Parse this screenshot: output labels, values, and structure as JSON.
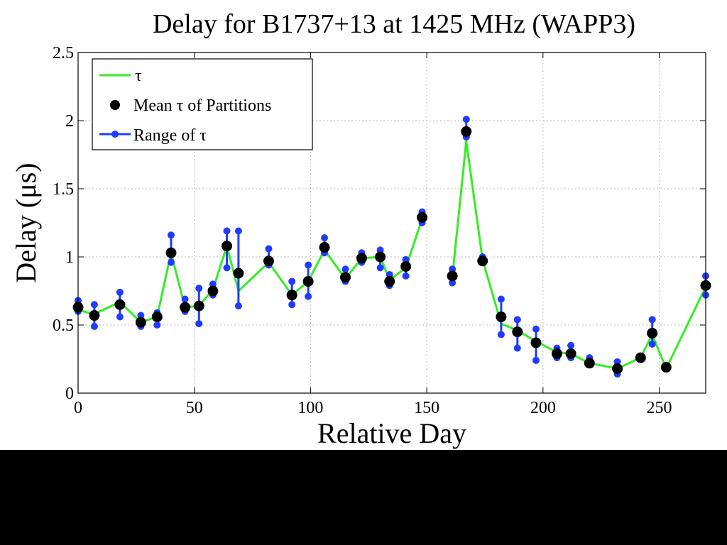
{
  "chart_data": {
    "type": "line",
    "title": "Delay for B1737+13 at 1425 MHz (WAPP3)",
    "xlabel": "Relative Day",
    "ylabel": "Delay (μs)",
    "xlim": [
      0,
      270
    ],
    "ylim": [
      0,
      2.5
    ],
    "xticks": [
      0,
      50,
      100,
      150,
      200,
      250
    ],
    "yticks": [
      0,
      0.5,
      1,
      1.5,
      2,
      2.5
    ],
    "x_tick_labels": [
      "0",
      "50",
      "100",
      "150",
      "200",
      "250"
    ],
    "y_tick_labels": [
      "0",
      "0.5",
      "1",
      "1.5",
      "2",
      "2.5"
    ],
    "grid": true,
    "legend_position": "top-left",
    "colors": {
      "tau": "#33ee22",
      "mean": "#000000",
      "range": "#1f3bff"
    },
    "legend": {
      "tau": "τ",
      "mean": "Mean τ of Partitions",
      "range": "Range of τ"
    },
    "series": [
      {
        "name": "τ",
        "segments": [
          {
            "x": [
              0,
              7,
              18,
              27,
              34,
              40,
              46,
              52,
              58,
              64,
              69,
              82,
              92,
              99,
              106,
              115,
              122,
              130,
              134,
              141,
              148
            ],
            "y": [
              0.61,
              0.58,
              0.67,
              0.52,
              0.56,
              1.03,
              0.63,
              0.64,
              0.76,
              1.08,
              0.75,
              0.96,
              0.72,
              0.82,
              1.05,
              0.84,
              0.99,
              1.0,
              0.83,
              0.92,
              1.28
            ]
          },
          {
            "x": [
              161,
              167,
              174,
              182,
              189,
              197,
              206,
              212,
              220,
              232,
              242,
              247,
              253,
              270
            ],
            "y": [
              0.85,
              1.85,
              0.98,
              0.51,
              0.46,
              0.38,
              0.3,
              0.29,
              0.22,
              0.18,
              0.26,
              0.43,
              0.18,
              0.78
            ]
          }
        ]
      },
      {
        "name": "Mean τ of Partitions",
        "x": [
          0,
          7,
          18,
          27,
          34,
          40,
          46,
          52,
          58,
          64,
          69,
          82,
          92,
          99,
          106,
          115,
          122,
          130,
          134,
          141,
          148,
          161,
          167,
          174,
          182,
          189,
          197,
          206,
          212,
          220,
          232,
          242,
          247,
          253,
          270
        ],
        "y": [
          0.63,
          0.57,
          0.65,
          0.52,
          0.56,
          1.03,
          0.63,
          0.64,
          0.75,
          1.08,
          0.88,
          0.97,
          0.72,
          0.82,
          1.07,
          0.85,
          0.99,
          1.0,
          0.82,
          0.93,
          1.29,
          0.86,
          1.92,
          0.97,
          0.56,
          0.45,
          0.37,
          0.29,
          0.29,
          0.22,
          0.18,
          0.26,
          0.44,
          0.19,
          0.79
        ]
      },
      {
        "name": "Range of τ",
        "x": [
          0,
          7,
          18,
          27,
          34,
          40,
          46,
          52,
          58,
          64,
          69,
          82,
          92,
          99,
          106,
          115,
          122,
          130,
          134,
          141,
          148,
          161,
          167,
          174,
          182,
          189,
          197,
          206,
          212,
          220,
          232,
          247,
          270
        ],
        "low": [
          0.6,
          0.49,
          0.56,
          0.49,
          0.5,
          0.96,
          0.6,
          0.51,
          0.72,
          0.92,
          0.64,
          0.94,
          0.65,
          0.71,
          1.03,
          0.82,
          0.96,
          0.92,
          0.79,
          0.86,
          1.25,
          0.81,
          1.88,
          0.96,
          0.43,
          0.33,
          0.24,
          0.26,
          0.26,
          0.21,
          0.14,
          0.36,
          0.72
        ],
        "high": [
          0.68,
          0.65,
          0.74,
          0.57,
          0.59,
          1.16,
          0.69,
          0.77,
          0.8,
          1.19,
          1.19,
          1.06,
          0.82,
          0.94,
          1.14,
          0.91,
          1.03,
          1.05,
          0.87,
          0.98,
          1.33,
          0.91,
          2.01,
          1.0,
          0.69,
          0.54,
          0.47,
          0.33,
          0.35,
          0.26,
          0.23,
          0.54,
          0.86
        ]
      }
    ]
  }
}
